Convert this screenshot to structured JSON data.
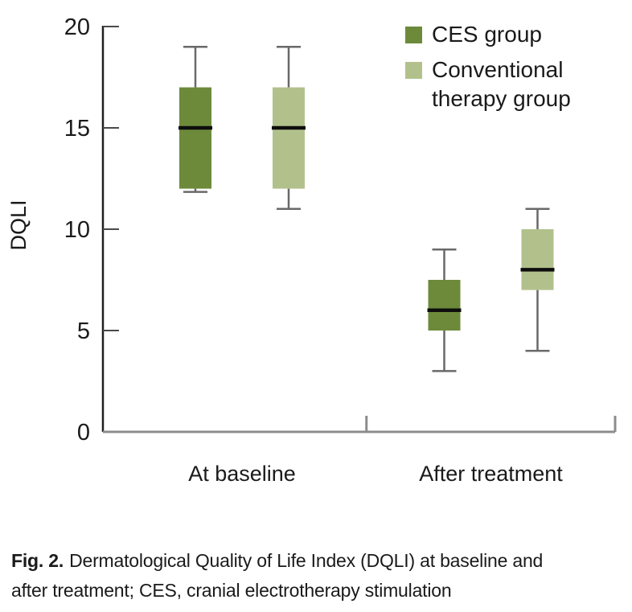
{
  "figure": {
    "caption": {
      "prefix": "Fig. 2.",
      "line1": "Dermatological Quality of Life Index (DQLI) at baseline and",
      "line2": "after treatment; CES, cranial electrotherapy stimulation"
    }
  },
  "chart_data": {
    "type": "box",
    "title": "",
    "xlabel": "",
    "ylabel": "DQLI",
    "ylim": [
      0,
      20
    ],
    "yticks": [
      0,
      5,
      10,
      15,
      20
    ],
    "categories": [
      "At baseline",
      "After treatment"
    ],
    "legend": {
      "position": "top-right",
      "entries": [
        {
          "label": "CES group",
          "label_lines": [
            "CES group"
          ],
          "color": "#6d8a3b"
        },
        {
          "label": "Conventional therapy group",
          "label_lines": [
            "Conventional",
            "therapy group"
          ],
          "color": "#b2c18c"
        }
      ]
    },
    "series": [
      {
        "name": "CES group",
        "color": "#6d8a3b",
        "boxes": [
          {
            "category": "At baseline",
            "min": 12,
            "q1": 12,
            "median": 15,
            "q3": 17,
            "max": 19
          },
          {
            "category": "After treatment",
            "min": 3,
            "q1": 5,
            "median": 6,
            "q3": 7.5,
            "max": 9
          }
        ]
      },
      {
        "name": "Conventional therapy group",
        "color": "#b2c18c",
        "boxes": [
          {
            "category": "At baseline",
            "min": 11,
            "q1": 12,
            "median": 15,
            "q3": 17,
            "max": 19
          },
          {
            "category": "After treatment",
            "min": 4,
            "q1": 7,
            "median": 8,
            "q3": 10,
            "max": 11
          }
        ]
      }
    ],
    "styles": {
      "median_color": "#0d0d0d",
      "whisker_color": "#696969",
      "x_axis_color": "#8c8c8c",
      "y_axis_color": "#202020",
      "tick_color": "#4a4a4a",
      "text_color": "#1a1a1a",
      "grid": "off"
    }
  }
}
